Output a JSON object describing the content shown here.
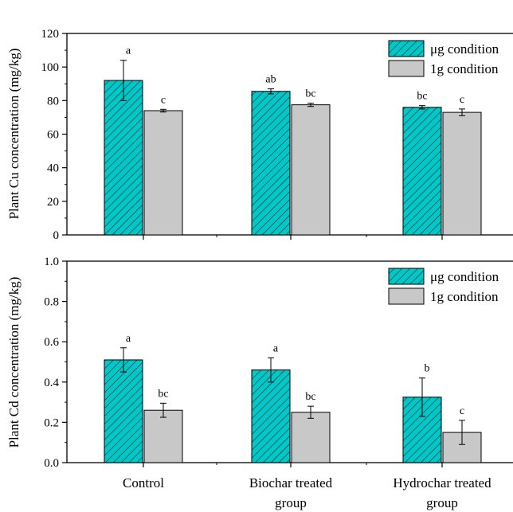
{
  "colors": {
    "hatched_fill": "#00c8c8",
    "hatch_line": "#222222",
    "grey_fill": "#c8c8c8",
    "axis": "#000000"
  },
  "chart_data": [
    {
      "type": "bar",
      "panel": "top",
      "categories": [
        "Control",
        "Biochar treated group",
        "Hydrochar treated group"
      ],
      "ylabel": "Plant Cu concentration (mg/kg)",
      "xlabel": "",
      "ylim": [
        0,
        120
      ],
      "yticks": [
        "0",
        "20",
        "40",
        "60",
        "80",
        "100",
        "120"
      ],
      "legend_position": "top-right",
      "series": [
        {
          "name": "μg condition",
          "pattern": "hatched",
          "values": [
            92,
            85.5,
            76
          ],
          "errors": [
            12,
            1.5,
            1
          ],
          "letters": [
            "a",
            "ab",
            "bc"
          ]
        },
        {
          "name": "1g condition",
          "pattern": "solid",
          "values": [
            74,
            77.5,
            73
          ],
          "errors": [
            0.8,
            1,
            2
          ],
          "letters": [
            "c",
            "bc",
            "c"
          ]
        }
      ]
    },
    {
      "type": "bar",
      "panel": "bottom",
      "categories": [
        "Control",
        "Biochar treated group",
        "Hydrochar treated group"
      ],
      "ylabel": "Plant Cd concentration (mg/kg)",
      "xlabel": "",
      "ylim": [
        0,
        1.0
      ],
      "yticks": [
        "0.0",
        "0.2",
        "0.4",
        "0.6",
        "0.8",
        "1.0"
      ],
      "legend_position": "top-right",
      "series": [
        {
          "name": "μg condition",
          "pattern": "hatched",
          "values": [
            0.51,
            0.46,
            0.325
          ],
          "errors": [
            0.06,
            0.06,
            0.095
          ],
          "letters": [
            "a",
            "a",
            "b"
          ]
        },
        {
          "name": "1g condition",
          "pattern": "solid",
          "values": [
            0.26,
            0.25,
            0.15
          ],
          "errors": [
            0.035,
            0.03,
            0.06
          ],
          "letters": [
            "bc",
            "bc",
            "c"
          ]
        }
      ]
    }
  ],
  "x_labels": [
    {
      "line1": "Control",
      "line2": ""
    },
    {
      "line1": "Biochar treated",
      "line2": "group"
    },
    {
      "line1": "Hydrochar treated",
      "line2": "group"
    }
  ]
}
